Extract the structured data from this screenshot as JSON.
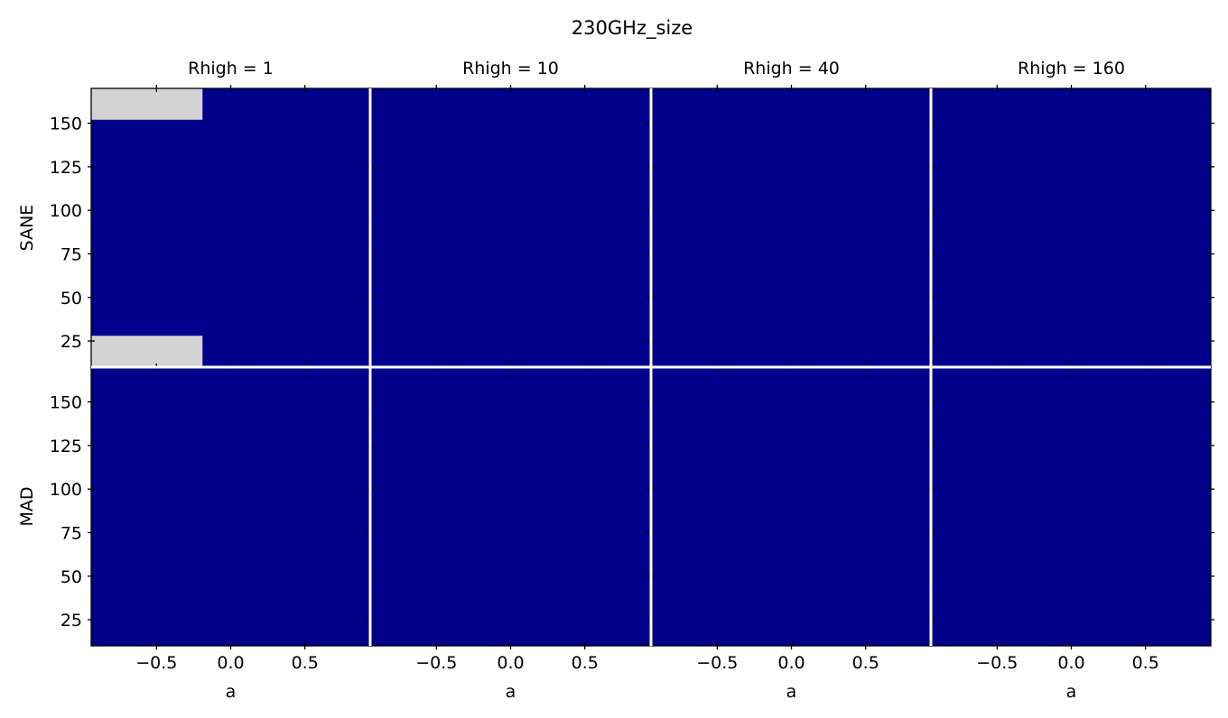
{
  "chart_data": {
    "type": "heatmap",
    "title": "230GHz_size",
    "columns": [
      "Rhigh = 1",
      "Rhigh = 10",
      "Rhigh = 40",
      "Rhigh = 160"
    ],
    "rows": [
      "SANE",
      "MAD"
    ],
    "xlabel": "a",
    "xlim": [
      -0.94,
      0.94
    ],
    "ylim": [
      10,
      170
    ],
    "xticks": [
      -0.5,
      0.0,
      0.5
    ],
    "xtick_labels": [
      "−0.5",
      "0.0",
      "0.5"
    ],
    "yticks": [
      25,
      50,
      75,
      100,
      125,
      150
    ],
    "ytick_labels": [
      "25",
      "50",
      "75",
      "100",
      "125",
      "150"
    ],
    "colors": {
      "fill": "#00008b",
      "missing": "#d3d3d3",
      "divider": "#ffffff"
    },
    "missing_cells": [
      {
        "row": 0,
        "col": 0,
        "a_range": [
          -0.94,
          -0.19
        ],
        "y_range": [
          10,
          28
        ]
      },
      {
        "row": 0,
        "col": 0,
        "a_range": [
          -0.94,
          -0.19
        ],
        "y_range": [
          152,
          170
        ]
      }
    ]
  }
}
